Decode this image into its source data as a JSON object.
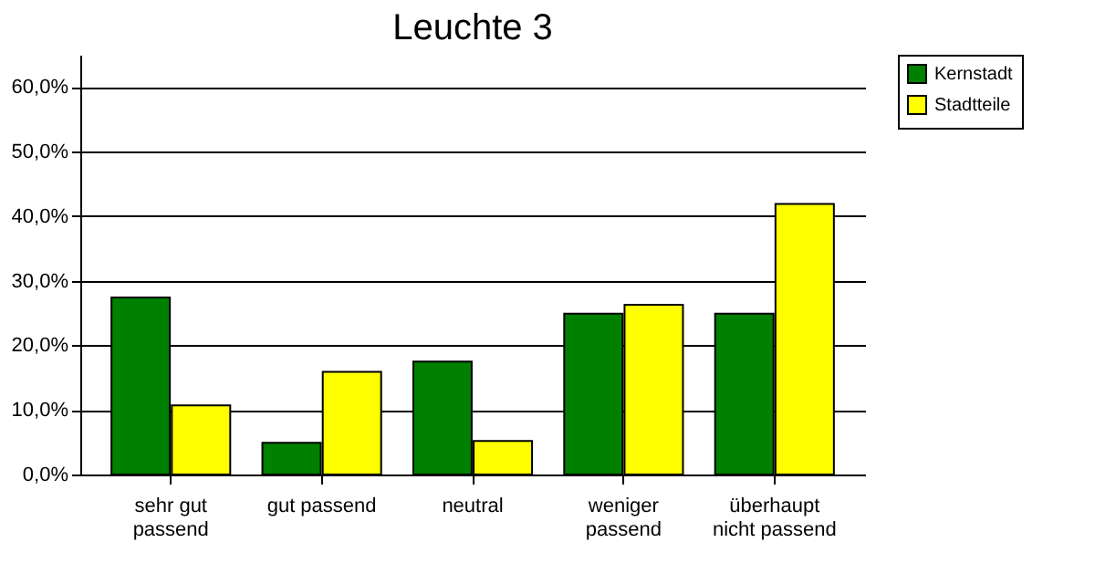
{
  "chart_data": {
    "type": "bar",
    "title": "Leuchte 3",
    "categories": [
      "sehr gut passend",
      "gut passend",
      "neutral",
      "weniger passend",
      "überhaupt nicht passend"
    ],
    "series": [
      {
        "name": "Kernstadt",
        "color": "#008000",
        "values": [
          27.4,
          4.9,
          17.5,
          24.9,
          24.9
        ]
      },
      {
        "name": "Stadtteile",
        "color": "#ffff00",
        "values": [
          10.7,
          15.9,
          5.2,
          26.3,
          41.9
        ]
      }
    ],
    "ylim": [
      0,
      65
    ],
    "yticks": [
      {
        "value": 0,
        "label": "0,0%"
      },
      {
        "value": 10,
        "label": "10,0%"
      },
      {
        "value": 20,
        "label": "20,0%"
      },
      {
        "value": 30,
        "label": "30,0%"
      },
      {
        "value": 40,
        "label": "40,0%"
      },
      {
        "value": 50,
        "label": "50,0%"
      },
      {
        "value": 60,
        "label": "60,0%"
      }
    ],
    "grid": "y",
    "legend": "right"
  }
}
